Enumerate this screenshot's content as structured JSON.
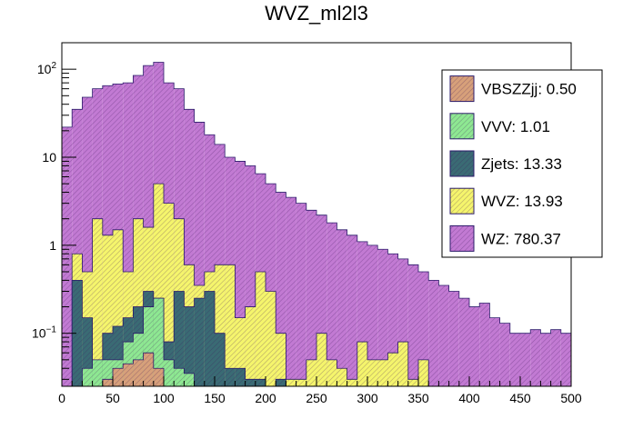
{
  "chart_data": {
    "type": "bar",
    "stacked": true,
    "title": "WVZ_ml2l3",
    "xlabel": "",
    "ylabel": "",
    "xlim": [
      0,
      500
    ],
    "ylim": [
      0.025,
      200
    ],
    "y_scale": "log",
    "bin_width": 10,
    "x_tick_labels": [
      "0",
      "50",
      "100",
      "150",
      "200",
      "250",
      "300",
      "350",
      "400",
      "450",
      "500"
    ],
    "y_tick_labels": [
      {
        "base": "10",
        "exp": "−1",
        "value": 0.1
      },
      {
        "base": "1",
        "exp": "",
        "value": 1
      },
      {
        "base": "10",
        "exp": "",
        "value": 10
      },
      {
        "base": "10",
        "exp": "2",
        "value": 100
      }
    ],
    "grid": false,
    "legend_position": "top-right",
    "series": [
      {
        "name": "VBSZZjj: 0.50",
        "color": "#d7a07a",
        "totals": [
          0,
          0,
          0,
          0,
          0.03,
          0.04,
          0.045,
          0.05,
          0.06,
          0.04,
          0.025,
          0,
          0,
          0,
          0,
          0,
          0,
          0,
          0,
          0,
          0,
          0,
          0,
          0,
          0,
          0,
          0,
          0,
          0,
          0,
          0,
          0,
          0,
          0,
          0,
          0,
          0,
          0,
          0,
          0,
          0,
          0,
          0,
          0,
          0,
          0,
          0,
          0,
          0,
          0
        ]
      },
      {
        "name": "VVV: 1.01",
        "color": "#8ee892",
        "totals": [
          0,
          0.025,
          0.04,
          0.05,
          0.05,
          0.05,
          0.08,
          0.1,
          0.2,
          0.25,
          0.05,
          0.04,
          0.035,
          0.025,
          0,
          0,
          0,
          0,
          0,
          0,
          0,
          0,
          0,
          0,
          0,
          0,
          0,
          0,
          0,
          0,
          0,
          0,
          0,
          0,
          0,
          0,
          0,
          0,
          0,
          0,
          0,
          0,
          0,
          0,
          0,
          0,
          0,
          0,
          0,
          0
        ]
      },
      {
        "name": "Zjets: 13.33",
        "color": "#3a6b74",
        "totals": [
          0,
          0.4,
          0.15,
          0.05,
          0.1,
          0.12,
          0.15,
          0.2,
          0.3,
          0.25,
          0.08,
          0.3,
          0.2,
          0.25,
          0.3,
          0.1,
          0.04,
          0.04,
          0.03,
          0.03,
          0.025,
          0.03,
          0.025,
          0,
          0,
          0,
          0,
          0,
          0,
          0,
          0,
          0,
          0,
          0,
          0,
          0,
          0,
          0,
          0,
          0,
          0,
          0,
          0,
          0,
          0,
          0,
          0,
          0,
          0,
          0
        ]
      },
      {
        "name": "WVZ: 13.93",
        "color": "#f5f56c",
        "totals": [
          0,
          0.8,
          0.5,
          2.0,
          1.3,
          1.5,
          0.5,
          2.0,
          1.6,
          5.0,
          3.0,
          2.0,
          0.6,
          0.35,
          0.5,
          0.6,
          0.6,
          0.15,
          0.2,
          0.5,
          0.3,
          0.1,
          0.03,
          0.03,
          0.05,
          0.1,
          0.05,
          0.04,
          0.03,
          0.08,
          0.05,
          0.05,
          0.06,
          0.08,
          0.03,
          0.05,
          0,
          0,
          0,
          0,
          0,
          0,
          0,
          0,
          0,
          0,
          0,
          0,
          0,
          0
        ]
      },
      {
        "name": "WZ: 780.37",
        "color": "#c27ad3",
        "totals": [
          22,
          35,
          48,
          60,
          65,
          68,
          70,
          85,
          110,
          120,
          70,
          60,
          35,
          25,
          18,
          14,
          10,
          9,
          8,
          6.5,
          5,
          4,
          3.5,
          3,
          2.5,
          2.2,
          1.8,
          1.5,
          1.3,
          1.1,
          1.0,
          0.9,
          0.8,
          0.7,
          0.6,
          0.5,
          0.4,
          0.35,
          0.3,
          0.25,
          0.2,
          0.22,
          0.15,
          0.13,
          0.1,
          0.1,
          0.11,
          0.1,
          0.11,
          0.1
        ]
      }
    ]
  }
}
